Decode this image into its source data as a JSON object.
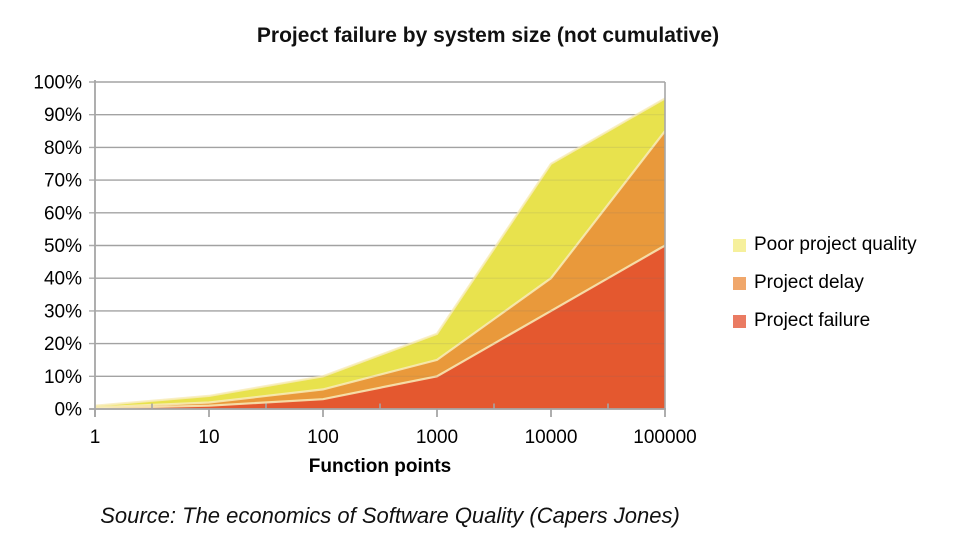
{
  "chart_data": {
    "type": "area",
    "title": "Project failure by system size (not cumulative)",
    "xlabel": "Function points",
    "ylabel": "",
    "source_note": "Source: The economics of Software Quality (Capers Jones)",
    "x_scale": "log10",
    "x": [
      1,
      10,
      100,
      1000,
      10000,
      100000
    ],
    "x_tick_labels": [
      "1",
      "10",
      "100",
      "1000",
      "10000",
      "100000"
    ],
    "y_tick_labels": [
      "0%",
      "10%",
      "20%",
      "30%",
      "40%",
      "50%",
      "60%",
      "70%",
      "80%",
      "90%",
      "100%"
    ],
    "ylim": [
      0,
      100
    ],
    "grid": true,
    "legend_position": "right-middle",
    "overlap_mode": "overlaid areas measured from zero (not stacked sums), drawn back-to-front",
    "series": [
      {
        "name": "Poor project quality",
        "values": [
          1,
          4,
          10,
          23,
          75,
          95
        ],
        "fill": "#E8E24D",
        "legend_swatch": "#F6F09C"
      },
      {
        "name": "Project delay",
        "values": [
          0.5,
          2,
          6,
          15,
          40,
          85
        ],
        "fill": "#E9993B",
        "legend_swatch": "#F0A76B"
      },
      {
        "name": "Project failure",
        "values": [
          0.2,
          1,
          3,
          10,
          30,
          50
        ],
        "fill": "#E4582F",
        "legend_swatch": "#EA7B62"
      }
    ]
  },
  "colors": {
    "background": "#FFFFFF",
    "grid": "#ABABAB",
    "axis": "#A6A6A6",
    "edge_highlight": "#F8ECBB",
    "text": "#000000"
  }
}
